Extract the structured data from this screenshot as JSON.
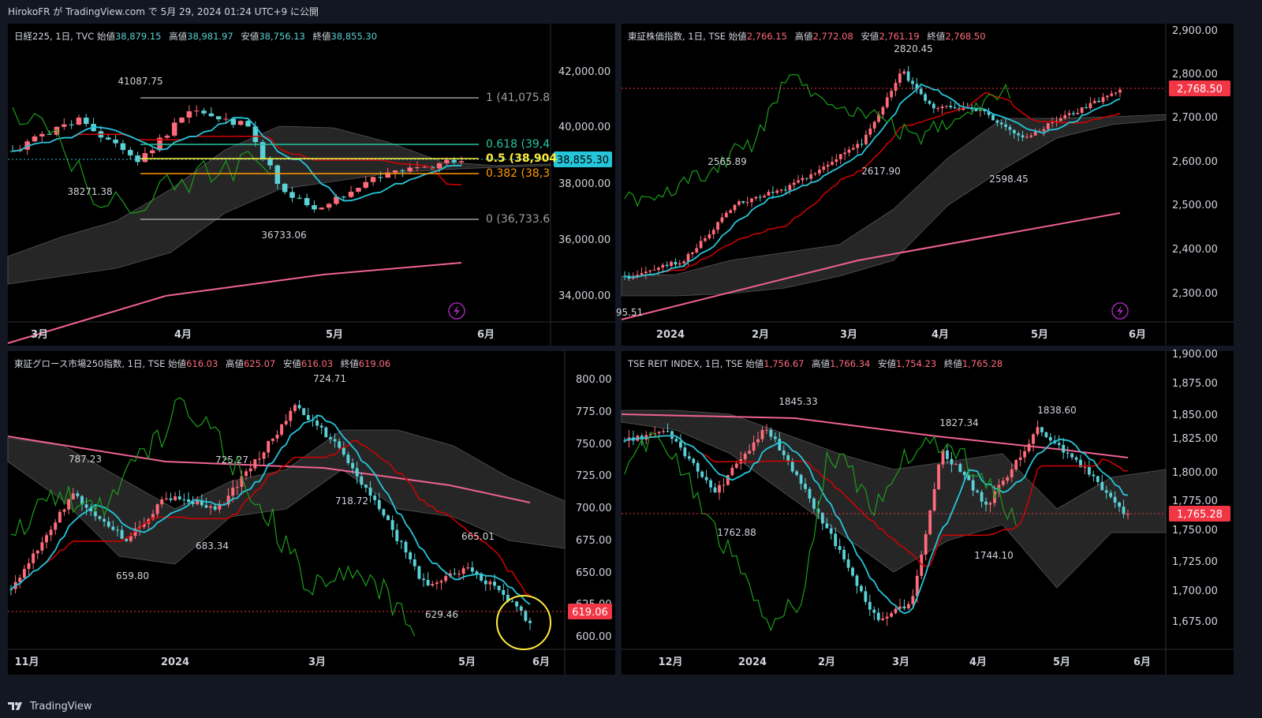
{
  "header": {
    "text": "HirokoFR が TradingView.com で 5月 29, 2024 01:24 UTC+9 に公開"
  },
  "footer": {
    "brand": "TradingView"
  },
  "colors": {
    "up": "#ff6b7a",
    "down": "#5ad1d6",
    "tenkan": "#26c6da",
    "kijun": "#d50000",
    "chikou": "#1b9e1b",
    "sma": "#f06292",
    "cloud": "#2a2a2a"
  },
  "panels": [
    {
      "id": "nikkei",
      "title": "日経225, 1日, TVC",
      "open_label": "始値",
      "open": "38,879.15",
      "high_label": "高値",
      "high": "38,981.97",
      "low_label": "安値",
      "low": "38,756.13",
      "close_label": "終値",
      "close": "38,855.30",
      "value_color": "#5ad1d6",
      "price_tag": "38,855.30",
      "price_tag_color": "#26c6da",
      "y_ticks": [
        "42,000.00",
        "40,000.00",
        "38,000.00",
        "36,000.00",
        "34,000.00"
      ],
      "x_ticks": [
        "3月",
        "4月",
        "5月",
        "6月"
      ],
      "annotations": [
        "41087.75",
        "38271.38",
        "36733.06"
      ],
      "fib": [
        {
          "label": "1 (41,075.8",
          "color": "#9e9e9e"
        },
        {
          "label": "0.618 (39,4",
          "color": "#26c6a0"
        },
        {
          "label": "0.5 (38,904",
          "color": "#ffeb3b"
        },
        {
          "label": "0.382 (38,3",
          "color": "#ff9800"
        },
        {
          "label": "0 (36,733.6",
          "color": "#9e9e9e"
        }
      ]
    },
    {
      "id": "topix",
      "title": "東証株価指数, 1日, TSE",
      "open_label": "始値",
      "open": "2,766.15",
      "high_label": "高値",
      "high": "2,772.08",
      "low_label": "安値",
      "low": "2,761.19",
      "close_label": "終値",
      "close": "2,768.50",
      "value_color": "#ff6b7a",
      "price_tag": "2,768.50",
      "price_tag_color": "#f23645",
      "y_ticks": [
        "2,900.00",
        "2,800.00",
        "2,700.00",
        "2,600.00",
        "2,500.00",
        "2,400.00",
        "2,300.00"
      ],
      "x_ticks": [
        "2024",
        "2月",
        "3月",
        "4月",
        "5月",
        "6月"
      ],
      "annotations": [
        "2820.45",
        "2565.89",
        "2617.90",
        "2598.45",
        "95.51"
      ]
    },
    {
      "id": "growth",
      "title": "東証グロース市場250指数, 1日, TSE",
      "open_label": "始値",
      "open": "616.03",
      "high_label": "高値",
      "high": "625.07",
      "low_label": "安値",
      "low": "616.03",
      "close_label": "終値",
      "close": "619.06",
      "value_color": "#ff6b7a",
      "price_tag": "619.06",
      "price_tag_color": "#f23645",
      "y_ticks": [
        "800.00",
        "775.00",
        "750.00",
        "725.00",
        "700.00",
        "675.00",
        "650.00",
        "625.00",
        "600.00"
      ],
      "x_ticks": [
        "11月",
        "2024",
        "3月",
        "5月",
        "6月"
      ],
      "annotations": [
        "787.23",
        "725.27",
        "724.71",
        "718.72",
        "683.34",
        "659.80",
        "665.01",
        "629.46"
      ]
    },
    {
      "id": "reit",
      "title": "TSE REIT INDEX, 1日, TSE",
      "open_label": "始値",
      "open": "1,756.67",
      "high_label": "高値",
      "high": "1,766.34",
      "low_label": "安値",
      "low": "1,754.23",
      "close_label": "終値",
      "close": "1,765.28",
      "value_color": "#ff6b7a",
      "price_tag": "1,765.28",
      "price_tag_color": "#f23645",
      "y_ticks": [
        "1,900.00",
        "1,875.00",
        "1,850.00",
        "1,825.00",
        "1,800.00",
        "1,775.00",
        "1,750.00",
        "1,725.00",
        "1,700.00",
        "1,675.00"
      ],
      "x_ticks": [
        "12月",
        "2024",
        "2月",
        "3月",
        "4月",
        "5月",
        "6月"
      ],
      "annotations": [
        "1845.33",
        "1827.34",
        "1838.60",
        "1762.88",
        "1744.10"
      ]
    }
  ]
}
